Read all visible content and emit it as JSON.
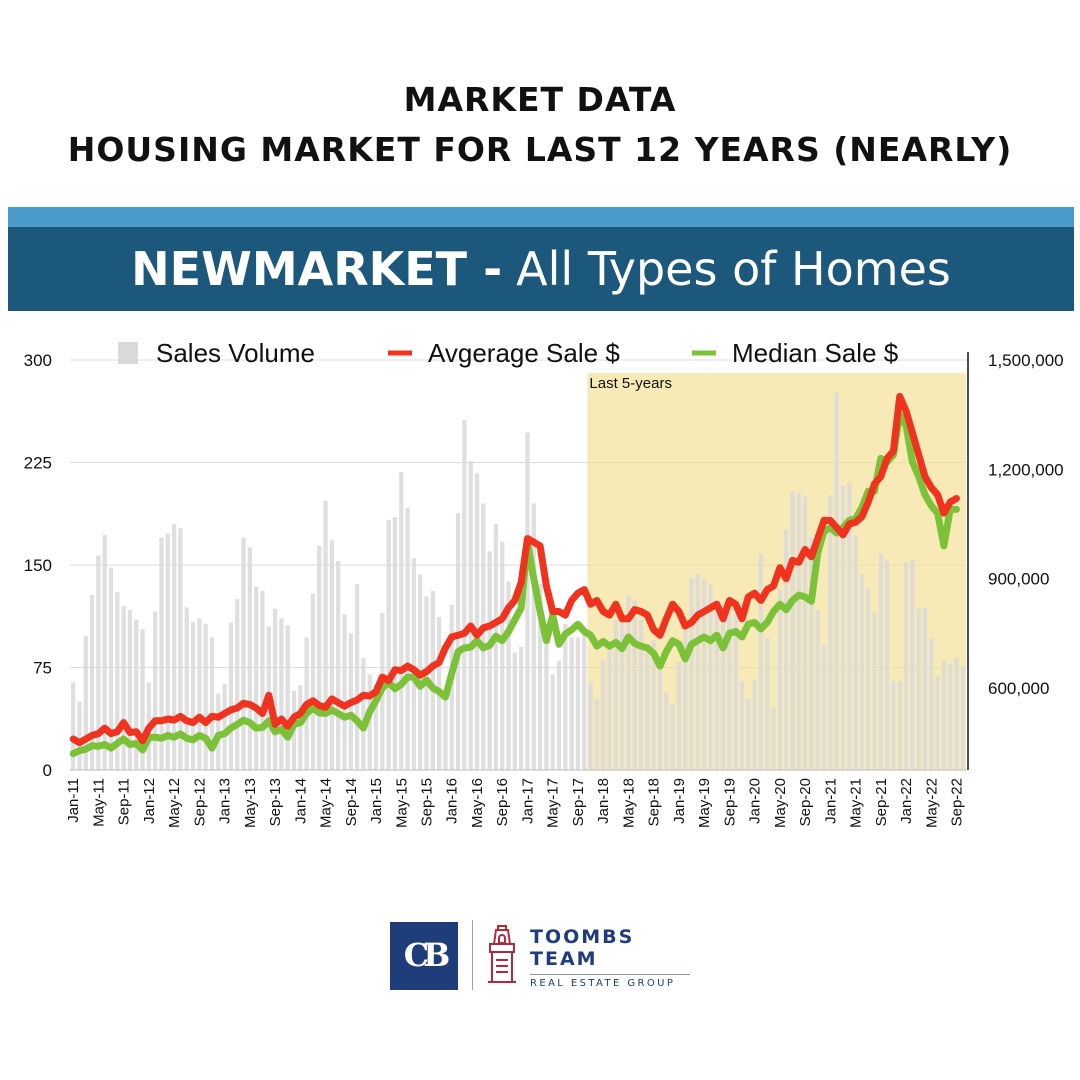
{
  "header": {
    "line1": "MARKET DATA",
    "line2": "HOUSING MARKET FOR LAST 12 YEARS (NEARLY)"
  },
  "banner": {
    "bold": "NEWMARKET -",
    "light": "All Types of Homes",
    "strip_color": "#4a9bcb",
    "color": "#1b587c"
  },
  "chart_data": {
    "type": "bar+line",
    "x_start": "2011-01",
    "x_end": "2022-10",
    "tick_labels": [
      "Jan-11",
      "May-11",
      "Sep-11",
      "Jan-12",
      "May-12",
      "Sep-12",
      "Jan-13",
      "May-13",
      "Sep-13",
      "Jan-14",
      "May-14",
      "Sep-14",
      "Jan-15",
      "May-15",
      "Sep-15",
      "Jan-16",
      "May-16",
      "Sep-16",
      "Jan-17",
      "May-17",
      "Sep-17",
      "Jan-18",
      "May-18",
      "Sep-18",
      "Jan-19",
      "May-19",
      "Sep-19",
      "Jan-20",
      "May-20",
      "Sep-20",
      "Jan-21",
      "May-21",
      "Sep-21",
      "Jan-22",
      "May-22",
      "Sep-22"
    ],
    "left_axis": {
      "ticks": [
        "0",
        "75",
        "150",
        "225",
        "300"
      ],
      "range": [
        0,
        300
      ]
    },
    "right_axis": {
      "ticks": [
        "600,000",
        "900,000",
        "1,200,000",
        "1,500,000"
      ],
      "range": [
        375000,
        1500000
      ]
    },
    "legend": [
      "Sales Volume",
      "Avgerage Sale $",
      "Median Sale $"
    ],
    "legend_position": "top",
    "highlight": {
      "label": "Last 5-years",
      "from": "2017-11",
      "to": "2022-10",
      "color": "#f5df8f"
    },
    "series": [
      {
        "name": "Sales Volume",
        "type": "bar",
        "axis": "left",
        "color": "#d9d9d9",
        "values": [
          64,
          50,
          98,
          128,
          157,
          172,
          148,
          130,
          120,
          117,
          110,
          103,
          64,
          116,
          170,
          173,
          180,
          177,
          119,
          108,
          111,
          107,
          97,
          56,
          63,
          108,
          125,
          170,
          163,
          134,
          131,
          105,
          118,
          111,
          106,
          58,
          62,
          97,
          129,
          164,
          197,
          168,
          153,
          114,
          100,
          136,
          82,
          70,
          63,
          115,
          183,
          185,
          218,
          192,
          155,
          143,
          127,
          131,
          112,
          58,
          121,
          188,
          256,
          226,
          217,
          195,
          160,
          180,
          167,
          138,
          86,
          90,
          247,
          195,
          136,
          104,
          70,
          80,
          107,
          97,
          97,
          100,
          64,
          52,
          80,
          89,
          110,
          112,
          128,
          124,
          110,
          86,
          95,
          80,
          57,
          48,
          79,
          104,
          140,
          143,
          140,
          136,
          124,
          120,
          116,
          113,
          65,
          52,
          66,
          158,
          97,
          45,
          132,
          176,
          204,
          203,
          200,
          170,
          117,
          92,
          201,
          276,
          208,
          210,
          172,
          143,
          133,
          115,
          158,
          153,
          65,
          65,
          152,
          154,
          118,
          119,
          96,
          68,
          80,
          78,
          82,
          76
        ]
      },
      {
        "name": "Avgerage Sale $",
        "type": "line",
        "axis": "right",
        "color": "#f0331f",
        "values": [
          460000,
          450000,
          460000,
          470000,
          475000,
          490000,
          475000,
          480000,
          505000,
          478000,
          480000,
          455000,
          490000,
          510000,
          510000,
          515000,
          512000,
          522000,
          510000,
          505000,
          520000,
          505000,
          522000,
          520000,
          530000,
          540000,
          545000,
          558000,
          555000,
          545000,
          530000,
          580000,
          500000,
          515000,
          495000,
          520000,
          530000,
          555000,
          565000,
          552000,
          547000,
          570000,
          560000,
          550000,
          560000,
          567000,
          580000,
          578000,
          590000,
          630000,
          620000,
          650000,
          648000,
          660000,
          650000,
          635000,
          645000,
          660000,
          670000,
          710000,
          740000,
          745000,
          750000,
          770000,
          745000,
          765000,
          770000,
          780000,
          790000,
          820000,
          840000,
          890000,
          1010000,
          1000000,
          990000,
          880000,
          810000,
          810000,
          800000,
          840000,
          860000,
          870000,
          830000,
          840000,
          810000,
          800000,
          830000,
          790000,
          790000,
          815000,
          810000,
          800000,
          760000,
          745000,
          790000,
          830000,
          810000,
          770000,
          780000,
          800000,
          810000,
          820000,
          830000,
          790000,
          840000,
          830000,
          790000,
          850000,
          860000,
          840000,
          870000,
          880000,
          930000,
          900000,
          950000,
          945000,
          980000,
          960000,
          1010000,
          1060000,
          1060000,
          1040000,
          1020000,
          1050000,
          1055000,
          1070000,
          1110000,
          1160000,
          1180000,
          1230000,
          1250000,
          1400000,
          1360000,
          1300000,
          1240000,
          1180000,
          1150000,
          1130000,
          1080000,
          1110000,
          1120000
        ]
      },
      {
        "name": "Median Sale $",
        "type": "line",
        "axis": "right",
        "color": "#7cc238",
        "values": [
          420000,
          428000,
          432000,
          442000,
          440000,
          445000,
          435000,
          448000,
          460000,
          445000,
          448000,
          430000,
          465000,
          465000,
          462000,
          470000,
          465000,
          474000,
          462000,
          458000,
          470000,
          462000,
          435000,
          470000,
          475000,
          490000,
          500000,
          512000,
          505000,
          490000,
          492000,
          510000,
          480000,
          487000,
          465000,
          500000,
          505000,
          530000,
          545000,
          532000,
          530000,
          540000,
          530000,
          520000,
          525000,
          510000,
          490000,
          535000,
          565000,
          600000,
          615000,
          598000,
          610000,
          630000,
          630000,
          605000,
          622000,
          600000,
          590000,
          575000,
          640000,
          700000,
          710000,
          712000,
          730000,
          710000,
          717000,
          742000,
          730000,
          755000,
          787000,
          820000,
          1000000,
          900000,
          810000,
          730000,
          800000,
          720000,
          748000,
          760000,
          775000,
          755000,
          745000,
          715000,
          728000,
          715000,
          725000,
          708000,
          740000,
          722000,
          715000,
          710000,
          695000,
          660000,
          700000,
          730000,
          720000,
          680000,
          720000,
          730000,
          740000,
          730000,
          745000,
          710000,
          750000,
          755000,
          740000,
          775000,
          780000,
          762000,
          780000,
          810000,
          830000,
          815000,
          840000,
          855000,
          850000,
          838000,
          970000,
          1030000,
          1040000,
          1025000,
          1040000,
          1060000,
          1065000,
          1095000,
          1140000,
          1140000,
          1230000,
          1220000,
          1240000,
          1350000,
          1320000,
          1220000,
          1180000,
          1130000,
          1100000,
          1080000,
          990000,
          1090000,
          1090000
        ]
      }
    ]
  },
  "logo": {
    "cb_mark": "CB",
    "line1": "TOOMBS",
    "line2": "TEAM",
    "line3": "REAL ESTATE GROUP",
    "cb_color": "#1f3d7a",
    "text_color": "#1f3d7a",
    "icon_color": "#b5283a"
  }
}
